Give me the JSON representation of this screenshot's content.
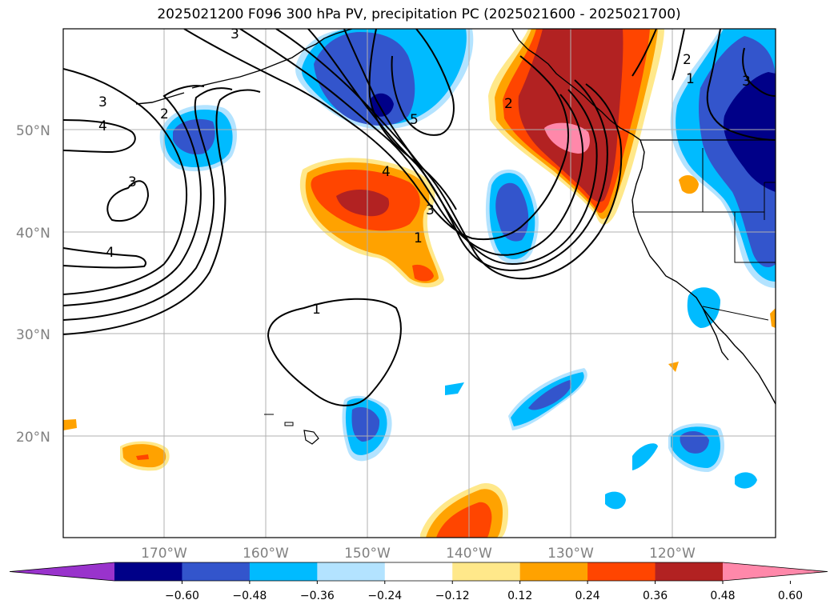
{
  "title": "2025021200 F096 300 hPa PV, precipitation PC (2025021600 - 2025021700)",
  "lat_labels": [
    "50°N",
    "40°N",
    "30°N",
    "20°N"
  ],
  "lon_labels": [
    "170°W",
    "160°W",
    "150°W",
    "140°W",
    "130°W",
    "120°W"
  ],
  "colorbar": {
    "ticks": [
      "−0.60",
      "−0.48",
      "−0.36",
      "−0.24",
      "−0.12",
      "0.12",
      "0.24",
      "0.36",
      "0.48",
      "0.60"
    ],
    "colors": [
      "#9933cc",
      "#000088",
      "#3355cc",
      "#00bbff",
      "#b3e3ff",
      "#ffffff",
      "#ffe88a",
      "#ffa200",
      "#ff4500",
      "#b22222",
      "#ff88aa"
    ]
  },
  "contour_labels": {
    "c1": "3",
    "c2": "4",
    "c3": "2",
    "c4": "3",
    "c5": "4",
    "c6": "3",
    "c7": "5",
    "c8": "4",
    "c9": "3",
    "c10": "1",
    "c11": "2",
    "c12": "2",
    "c13": "1",
    "c14": "3",
    "c15": "1"
  }
}
